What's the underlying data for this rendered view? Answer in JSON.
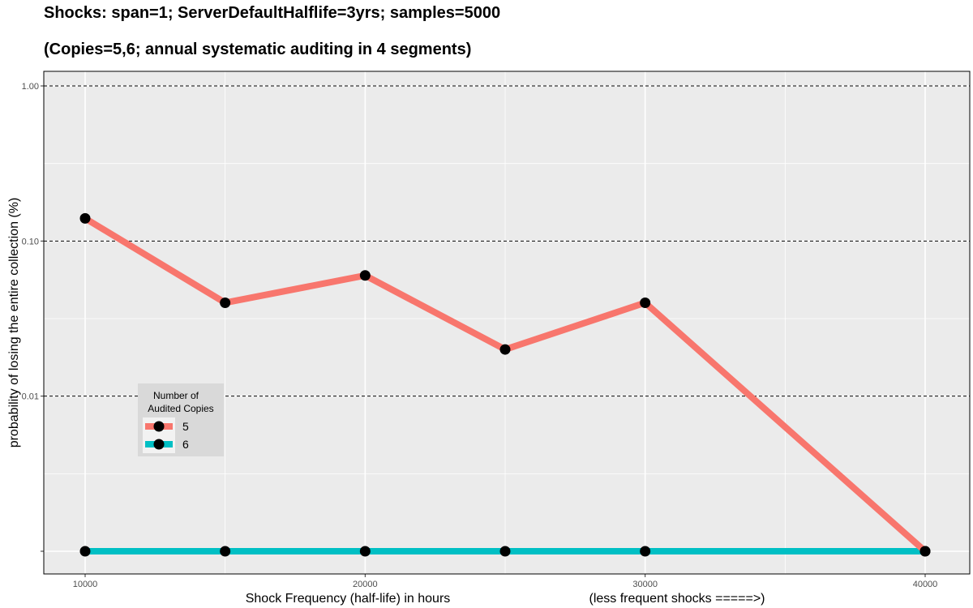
{
  "chart_data": {
    "type": "line",
    "title": "Shocks: span=1; ServerDefaultHalflife=3yrs; samples=5000",
    "subtitle": "(Copies=5,6; annual systematic auditing in 4 segments)",
    "xlabel": "Shock Frequency (half-life) in hours",
    "xlabel_note": "(less frequent shocks =====>)",
    "ylabel": "probability of losing the entire collection (%)",
    "y_scale": "log",
    "xlim": [
      8500,
      41500
    ],
    "ylim": [
      0.00085,
      1.4
    ],
    "x_ticks": [
      10000,
      20000,
      30000,
      40000
    ],
    "y_ticks": [
      {
        "value": 1.0,
        "label": "1.00"
      },
      {
        "value": 0.1,
        "label": "0.10"
      },
      {
        "value": 0.01,
        "label": "0.01"
      },
      {
        "value": 0.001,
        "label": ""
      }
    ],
    "y_dashed_lines": [
      1.0,
      0.1,
      0.01
    ],
    "y_minor": [
      0.3162,
      0.03162,
      0.003162
    ],
    "x_minor": [
      15000,
      25000,
      35000
    ],
    "grid": true,
    "legend": {
      "title": "Number of Audited Copies",
      "title_lines": [
        "Number of",
        "Audited Copies"
      ],
      "position": "left-middle"
    },
    "series": [
      {
        "name": "5",
        "color": "#F8766D",
        "x": [
          10000,
          15000,
          20000,
          25000,
          30000,
          40000
        ],
        "y": [
          0.14,
          0.04,
          0.06,
          0.02,
          0.04,
          0.001
        ]
      },
      {
        "name": "6",
        "color": "#00BFC4",
        "x": [
          10000,
          15000,
          20000,
          25000,
          30000,
          40000
        ],
        "y": [
          0.001,
          0.001,
          0.001,
          0.001,
          0.001,
          0.001
        ]
      }
    ]
  }
}
